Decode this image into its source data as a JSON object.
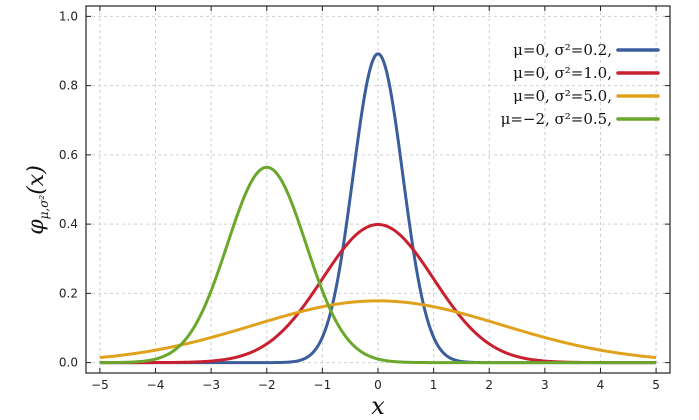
{
  "chart_data": {
    "type": "line",
    "title": "",
    "xlabel": "x",
    "ylabel": "φ_{μ,σ²}(x)",
    "xlim": [
      -5.25,
      5.25
    ],
    "ylim": [
      -0.03,
      1.03
    ],
    "xticks": [
      -5,
      -4,
      -3,
      -2,
      -1,
      0,
      1,
      2,
      3,
      4,
      5
    ],
    "xtick_labels": [
      "−5",
      "−4",
      "−3",
      "−2",
      "−1",
      "0",
      "1",
      "2",
      "3",
      "4",
      "5"
    ],
    "yticks": [
      0.0,
      0.2,
      0.4,
      0.6,
      0.8,
      1.0
    ],
    "ytick_labels": [
      "0.0",
      "0.2",
      "0.4",
      "0.6",
      "0.8",
      "1.0"
    ],
    "grid": true,
    "legend_position": "top-right",
    "series": [
      {
        "name": "μ=0,   σ²=0.2,",
        "mu": 0,
        "variance": 0.2,
        "color": "#3a5d9c"
      },
      {
        "name": "μ=0,   σ²=1.0,",
        "mu": 0,
        "variance": 1.0,
        "color": "#c8202f"
      },
      {
        "name": "μ=0,   σ²=5.0,",
        "mu": 0,
        "variance": 5.0,
        "color": "#e0a21d"
      },
      {
        "name": "μ=−2, σ²=0.5,",
        "mu": -2,
        "variance": 0.5,
        "color": "#6aa72b"
      }
    ]
  }
}
